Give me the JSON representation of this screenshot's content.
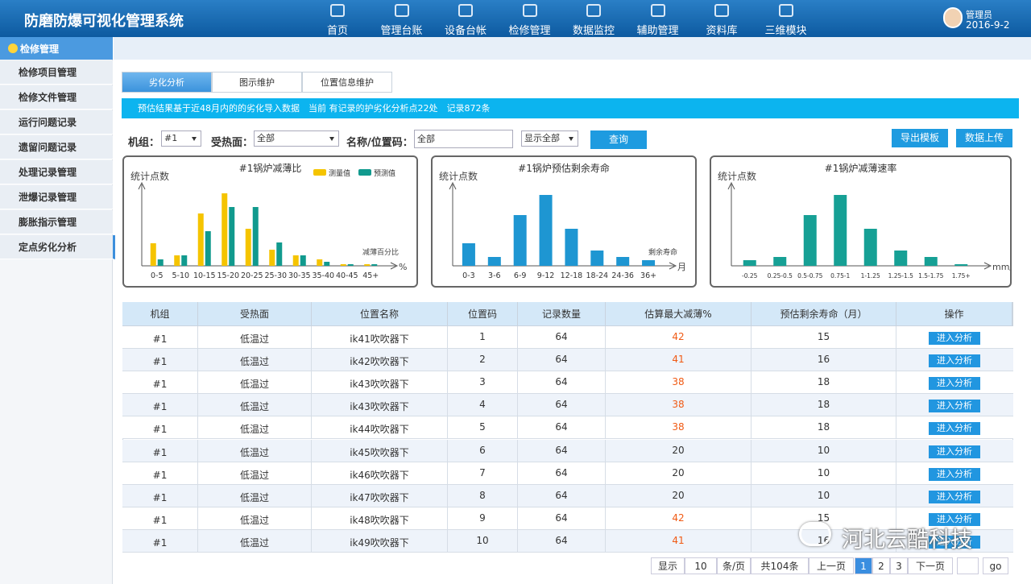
{
  "header": {
    "title": "防磨防爆可视化管理系统",
    "nav": [
      "首页",
      "管理台账",
      "设备台帐",
      "检修管理",
      "数据监控",
      "辅助管理",
      "资料库",
      "三维模块"
    ],
    "user": "管理员",
    "date": "2016-9-2"
  },
  "sidebar": {
    "title": "检修管理",
    "items": [
      "检修项目管理",
      "检修文件管理",
      "运行问题记录",
      "遗留问题记录",
      "处理记录管理",
      "泄爆记录管理",
      "膨胀指示管理",
      "定点劣化分析"
    ]
  },
  "tabs": [
    "劣化分析",
    "图示维护",
    "位置信息维护"
  ],
  "banner": "预估结果基于近48月内的的劣化导入数据　当前 有记录的护劣化分析点22处　记录872条",
  "filters": {
    "unit_label": "机组：",
    "unit_value": "#1",
    "surface_label": "受热面：",
    "surface_value": "全部",
    "name_label": "名称/位置码：",
    "name_value": "全部",
    "display_value": "显示全部",
    "query": "查询",
    "export": "导出模板",
    "upload": "数据上传"
  },
  "chart_data": [
    {
      "type": "bar",
      "title": "#1锅炉减薄比",
      "y_label": "统计点数",
      "x_label": "减薄百分比",
      "x_unit": "%",
      "categories": [
        "0-5",
        "5-10",
        "10-15",
        "15-20",
        "20-25",
        "25-30",
        "30-35",
        "35-40",
        "40-45",
        "45+"
      ],
      "series": [
        {
          "name": "测量值",
          "color": "#f5c400",
          "values": [
            28,
            13,
            65,
            90,
            46,
            20,
            13,
            8,
            2,
            2
          ]
        },
        {
          "name": "预测值",
          "color": "#119a8e",
          "values": [
            8,
            13,
            43,
            73,
            73,
            29,
            13,
            5,
            2,
            2
          ]
        }
      ],
      "ylim": [
        0,
        100
      ]
    },
    {
      "type": "bar",
      "title": "#1锅炉预估剩余寿命",
      "y_label": "统计点数",
      "x_label": "剩余寿命",
      "x_unit": "月",
      "categories": [
        "0-3",
        "3-6",
        "6-9",
        "9-12",
        "12-18",
        "18-24",
        "24-36",
        "36+"
      ],
      "color": "#1e96d2",
      "values": [
        28,
        11,
        63,
        88,
        46,
        19,
        11,
        7
      ],
      "ylim": [
        0,
        100
      ]
    },
    {
      "type": "bar",
      "title": "#1锅炉减薄速率",
      "y_label": "统计点数",
      "x_unit": "mm/y",
      "categories": [
        "-0.25",
        "0.25-0.5",
        "0.5-0.75",
        "0.75-1",
        "1-1.25",
        "1.25-1.5",
        "1.5-1.75",
        "1.75+"
      ],
      "color": "#16a095",
      "values": [
        7,
        11,
        63,
        88,
        46,
        19,
        11,
        2
      ],
      "ylim": [
        0,
        100
      ]
    }
  ],
  "table": {
    "columns": [
      "机组",
      "受热面",
      "位置名称",
      "位置码",
      "记录数量",
      "估算最大减薄%",
      "预估剩余寿命（月）",
      "操作"
    ],
    "rows": [
      [
        "#1",
        "低温过",
        "ik41吹吹器下",
        1,
        64,
        42,
        15
      ],
      [
        "#1",
        "低温过",
        "ik42吹吹器下",
        2,
        64,
        41,
        16
      ],
      [
        "#1",
        "低温过",
        "ik43吹吹器下",
        3,
        64,
        38,
        18
      ],
      [
        "#1",
        "低温过",
        "ik43吹吹器下",
        4,
        64,
        38,
        18
      ],
      [
        "#1",
        "低温过",
        "ik44吹吹器下",
        5,
        64,
        38,
        18
      ],
      [
        "#1",
        "低温过",
        "ik45吹吹器下",
        6,
        64,
        20,
        10
      ],
      [
        "#1",
        "低温过",
        "ik46吹吹器下",
        7,
        64,
        20,
        10
      ],
      [
        "#1",
        "低温过",
        "ik47吹吹器下",
        8,
        64,
        20,
        10
      ],
      [
        "#1",
        "低温过",
        "ik48吹吹器下",
        9,
        64,
        42,
        15
      ],
      [
        "#1",
        "低温过",
        "ik49吹吹器下",
        10,
        64,
        41,
        16
      ]
    ],
    "highlight": [
      true,
      true,
      true,
      true,
      true,
      false,
      false,
      false,
      true,
      true
    ],
    "highlight_color": "#f05a14",
    "action": "进入分析"
  },
  "pagination": {
    "show": "显示",
    "size": "10",
    "per_page": "条/页",
    "total": "共104条",
    "prev": "上一页",
    "pages": [
      "1",
      "2",
      "3"
    ],
    "next": "下一页",
    "go": "go"
  },
  "watermark": "河北云酷科技"
}
